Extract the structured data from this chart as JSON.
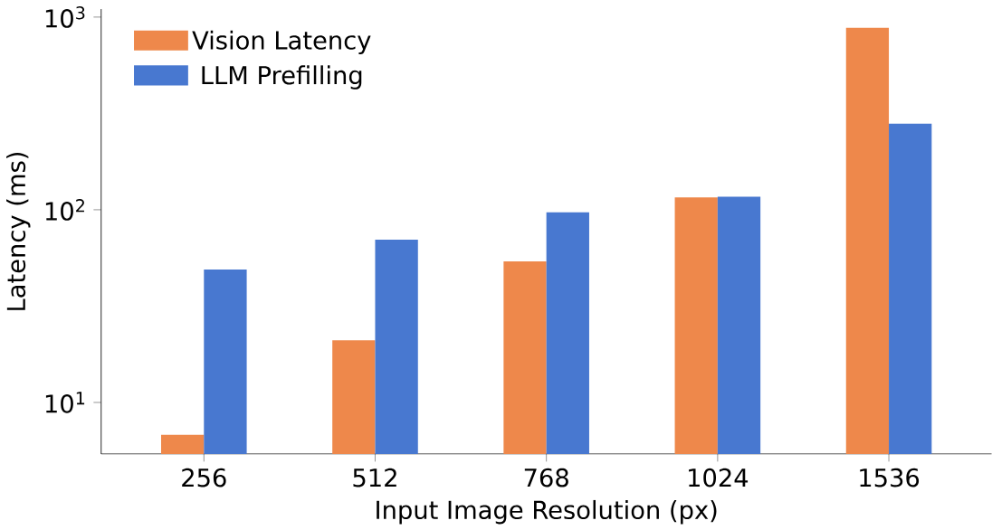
{
  "chart_data": {
    "type": "bar",
    "xlabel": "Input Image Resolution (px)",
    "ylabel": "Latency (ms)",
    "categories": [
      "256",
      "512",
      "768",
      "1024",
      "1536"
    ],
    "series": [
      {
        "name": "Vision Latency",
        "color": "#ee884b",
        "values": [
          6.8,
          21,
          54,
          116,
          880
        ]
      },
      {
        "name": "LLM Prefilling",
        "color": "#4878d0",
        "values": [
          49,
          70,
          97,
          117,
          280
        ]
      }
    ],
    "log": "y",
    "ylim": [
      5.4,
      1100
    ],
    "yticks": [
      {
        "value": 10,
        "label": "10$^{1}$"
      },
      {
        "value": 100,
        "label": "10$^{2}$"
      },
      {
        "value": 1000,
        "label": "10$^{3}$"
      }
    ],
    "legend": "top left",
    "grid": false
  }
}
